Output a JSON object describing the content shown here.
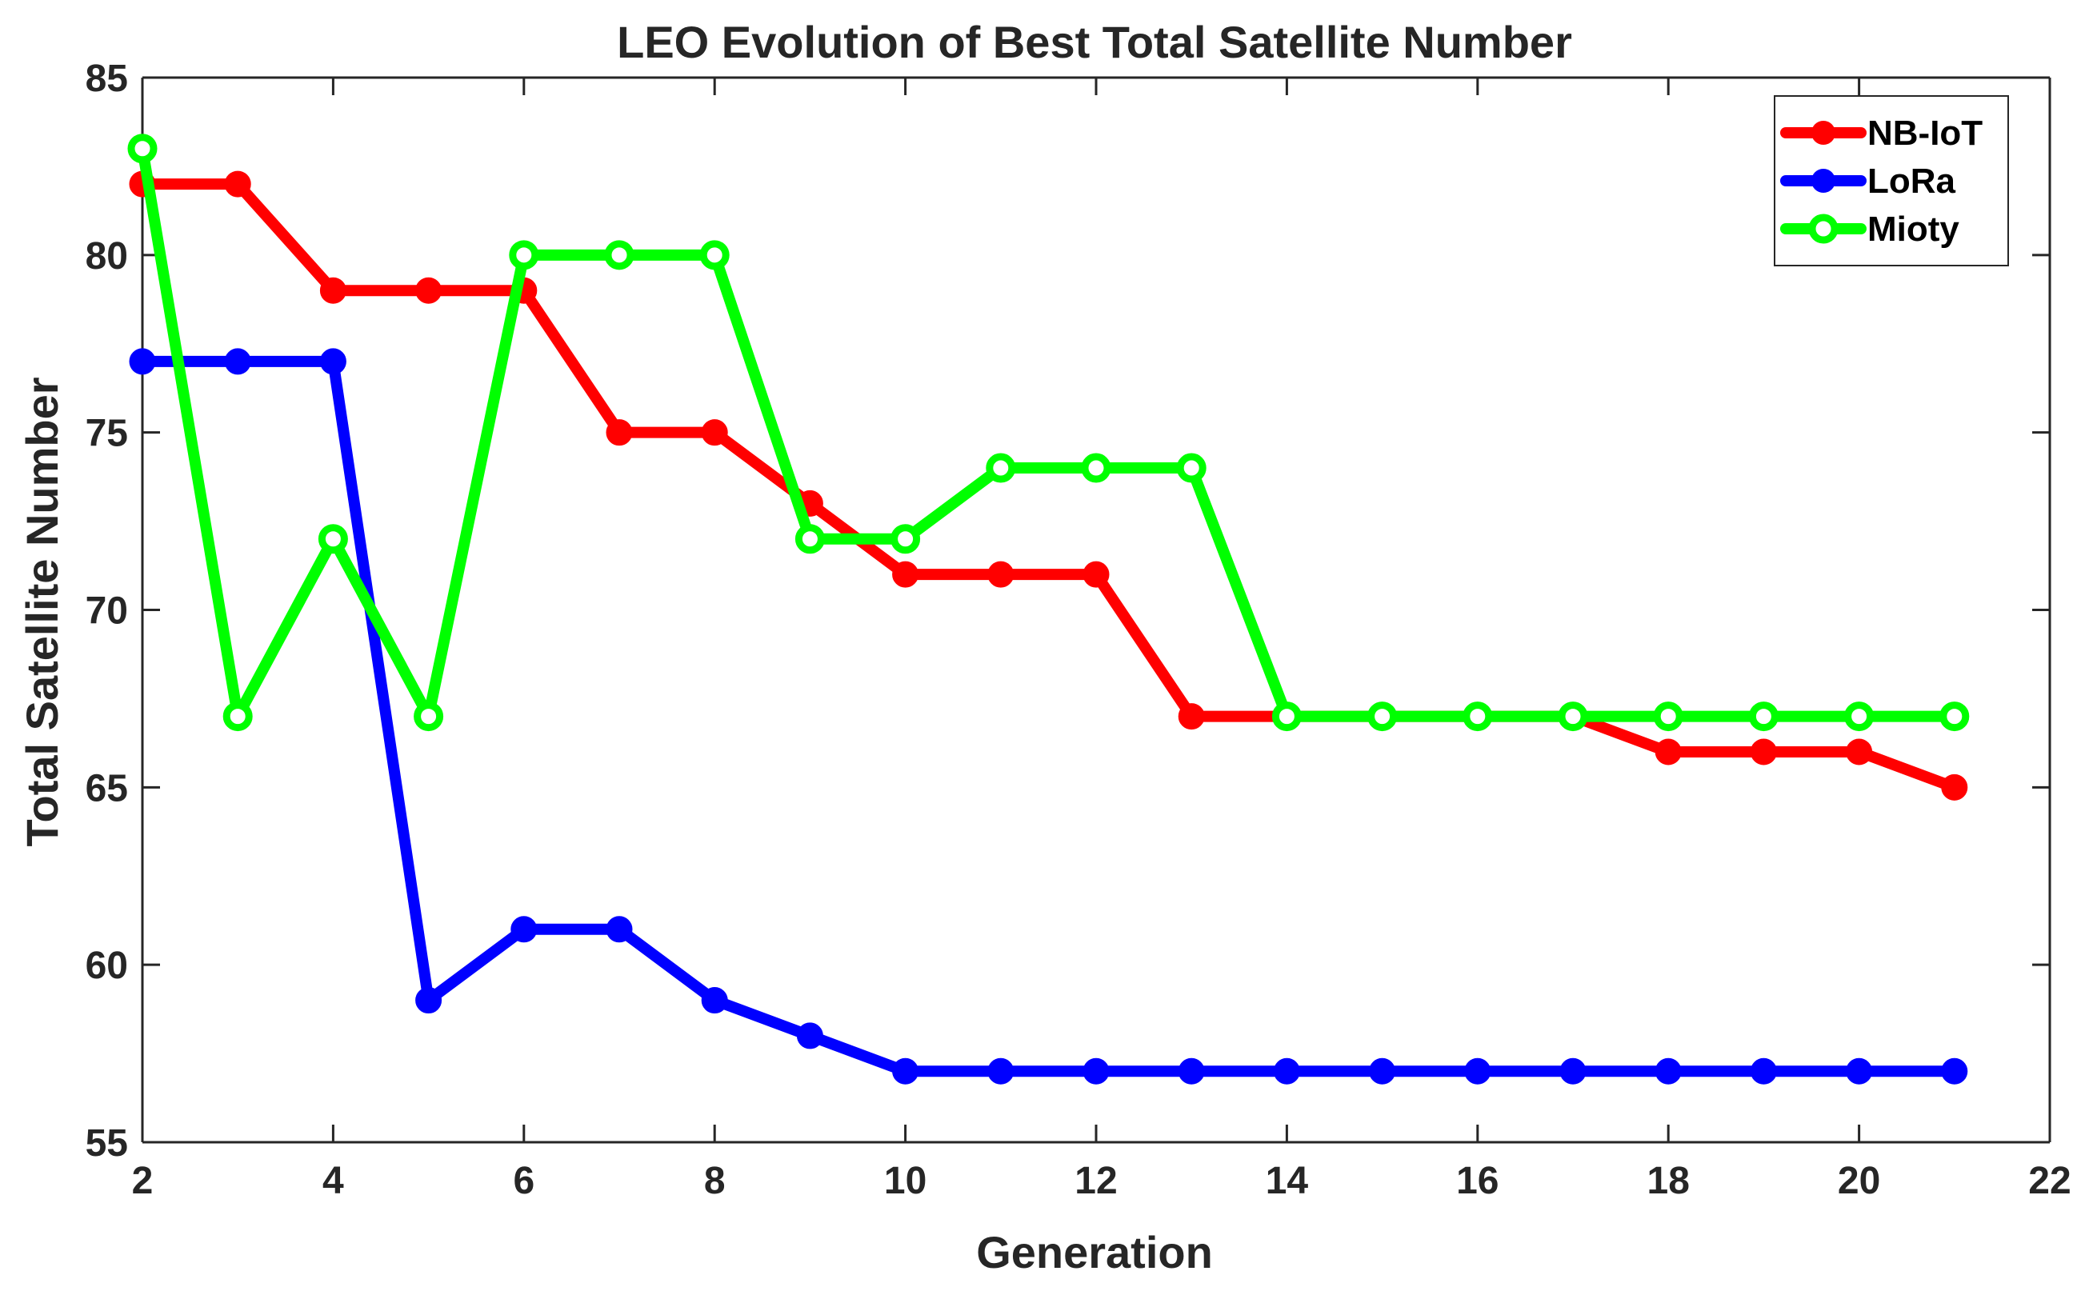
{
  "chart_data": {
    "type": "line",
    "title": "LEO Evolution of Best Total Satellite Number",
    "xlabel": "Generation",
    "ylabel": "Total Satellite Number",
    "xlim": [
      2,
      22
    ],
    "ylim": [
      55,
      85
    ],
    "xticks": [
      2,
      4,
      6,
      8,
      10,
      12,
      14,
      16,
      18,
      20,
      22
    ],
    "yticks": [
      55,
      60,
      65,
      70,
      75,
      80,
      85
    ],
    "grid": false,
    "legend_position": "top-right",
    "x": [
      2,
      3,
      4,
      5,
      6,
      7,
      8,
      9,
      10,
      11,
      12,
      13,
      14,
      15,
      16,
      17,
      18,
      19,
      20,
      21
    ],
    "series": [
      {
        "name": "NB-IoT",
        "color": "#ff0000",
        "marker": "filled-circle",
        "values": [
          82,
          82,
          79,
          79,
          79,
          75,
          75,
          73,
          71,
          71,
          71,
          67,
          67,
          67,
          67,
          67,
          66,
          66,
          66,
          65
        ]
      },
      {
        "name": "LoRa",
        "color": "#0000ff",
        "marker": "filled-circle",
        "values": [
          77,
          77,
          77,
          59,
          61,
          61,
          59,
          58,
          57,
          57,
          57,
          57,
          57,
          57,
          57,
          57,
          57,
          57,
          57,
          57
        ]
      },
      {
        "name": "Mioty",
        "color": "#00ff00",
        "marker": "open-circle",
        "values": [
          83,
          67,
          72,
          67,
          80,
          80,
          80,
          72,
          72,
          74,
          74,
          74,
          67,
          67,
          67,
          67,
          67,
          67,
          67,
          67
        ]
      }
    ]
  }
}
